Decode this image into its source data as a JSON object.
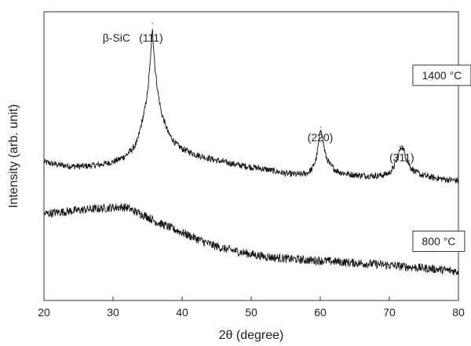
{
  "chart_data": {
    "type": "line",
    "title": "",
    "xlabel": "2θ (degree)",
    "ylabel": "Intensity (arb. unit)",
    "xlim": [
      20,
      80
    ],
    "ylim": [
      0,
      1
    ],
    "xticks": [
      "20",
      "30",
      "40",
      "50",
      "60",
      "70",
      "80"
    ],
    "x_tick_values": [
      20,
      30,
      40,
      50,
      60,
      70,
      80
    ],
    "grid": false,
    "series": [
      {
        "name": "1400 °C",
        "color": "#111111",
        "x": [
          20,
          22,
          24,
          26,
          28,
          30,
          31,
          32,
          33,
          33.5,
          34,
          34.5,
          35,
          35.3,
          35.6,
          35.7,
          35.8,
          36.1,
          36.5,
          37,
          38,
          39,
          40,
          42,
          45,
          48,
          50,
          52,
          54,
          55,
          56,
          57,
          58,
          58.8,
          59.4,
          59.8,
          60.1,
          60.4,
          60.8,
          61.4,
          62.2,
          63,
          64,
          65,
          66,
          67,
          68,
          69,
          70,
          70.6,
          71.1,
          71.5,
          71.8,
          72.1,
          72.5,
          73.1,
          73.8,
          74.6,
          75.5,
          76.5,
          78,
          80
        ],
        "values": [
          0.48,
          0.47,
          0.465,
          0.465,
          0.47,
          0.48,
          0.49,
          0.505,
          0.53,
          0.55,
          0.6,
          0.65,
          0.72,
          0.8,
          0.9,
          0.96,
          0.9,
          0.8,
          0.72,
          0.65,
          0.58,
          0.545,
          0.525,
          0.505,
          0.485,
          0.47,
          0.462,
          0.455,
          0.445,
          0.44,
          0.438,
          0.437,
          0.44,
          0.455,
          0.49,
          0.55,
          0.6,
          0.55,
          0.5,
          0.47,
          0.452,
          0.443,
          0.438,
          0.435,
          0.433,
          0.432,
          0.432,
          0.434,
          0.442,
          0.46,
          0.49,
          0.52,
          0.535,
          0.52,
          0.49,
          0.46,
          0.445,
          0.435,
          0.43,
          0.425,
          0.42,
          0.415
        ]
      },
      {
        "name": "800 °C",
        "color": "#111111",
        "x": [
          20,
          22,
          24,
          26,
          28,
          30,
          31,
          32,
          33,
          34,
          35,
          36,
          38,
          40,
          42,
          44,
          46,
          48,
          50,
          52,
          55,
          58,
          60,
          62,
          65,
          68,
          70,
          72,
          75,
          78,
          80
        ],
        "values": [
          0.3,
          0.305,
          0.31,
          0.315,
          0.318,
          0.322,
          0.324,
          0.322,
          0.31,
          0.3,
          0.29,
          0.275,
          0.255,
          0.235,
          0.215,
          0.195,
          0.18,
          0.17,
          0.16,
          0.152,
          0.145,
          0.14,
          0.138,
          0.135,
          0.13,
          0.126,
          0.122,
          0.118,
          0.112,
          0.106,
          0.1
        ]
      }
    ],
    "annotations": [
      {
        "text": "β-SiC",
        "x": 30.5,
        "y": 1.0
      },
      {
        "text": "(111)",
        "x": 35.5,
        "y": 1.0
      },
      {
        "text": "(220)",
        "x": 60.0,
        "y": 0.655
      },
      {
        "text": "(311)",
        "x": 71.8,
        "y": 0.585
      }
    ],
    "legend_boxes": [
      {
        "text": "1400 °C",
        "anchor_x": 73.4,
        "anchor_y": 0.78
      },
      {
        "text": "800 °C",
        "anchor_x": 73.4,
        "anchor_y": 0.205
      }
    ]
  }
}
